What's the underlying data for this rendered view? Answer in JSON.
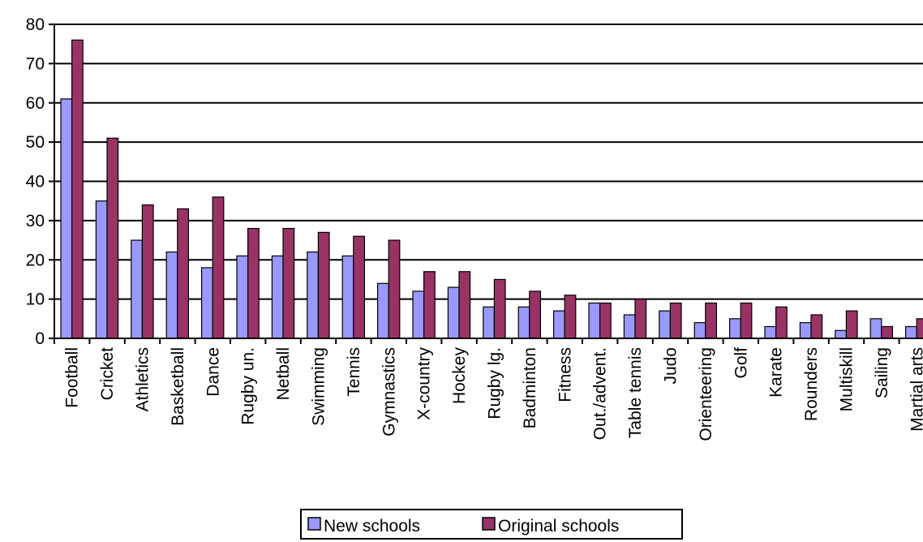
{
  "chart_data": {
    "type": "bar",
    "title": "",
    "xlabel": "",
    "ylabel": "",
    "ylim": [
      0,
      80
    ],
    "yticks": [
      0,
      10,
      20,
      30,
      40,
      50,
      60,
      70,
      80
    ],
    "grid": "horizontal",
    "legend_position": "bottom",
    "categories": [
      "Football",
      "Cricket",
      "Athletics",
      "Basketball",
      "Dance",
      "Rugby un.",
      "Netball",
      "Swimming",
      "Tennis",
      "Gymnastics",
      "X-country",
      "Hockey",
      "Rugby lg.",
      "Badminton",
      "Fitness",
      "Out./advent.",
      "Table tennis",
      "Judo",
      "Orienteering",
      "Golf",
      "Karate",
      "Rounders",
      "Multiskill",
      "Sailing",
      "Martial arts"
    ],
    "series": [
      {
        "name": "New schools",
        "color": "#9999ff",
        "values": [
          61,
          35,
          25,
          22,
          18,
          21,
          21,
          22,
          21,
          14,
          12,
          13,
          8,
          8,
          7,
          9,
          6,
          7,
          4,
          5,
          3,
          4,
          2,
          5,
          3
        ]
      },
      {
        "name": "Original schools",
        "color": "#993366",
        "values": [
          76,
          51,
          34,
          33,
          36,
          28,
          28,
          27,
          26,
          25,
          17,
          17,
          15,
          12,
          11,
          9,
          10,
          9,
          9,
          9,
          8,
          6,
          7,
          3,
          5
        ]
      }
    ]
  }
}
